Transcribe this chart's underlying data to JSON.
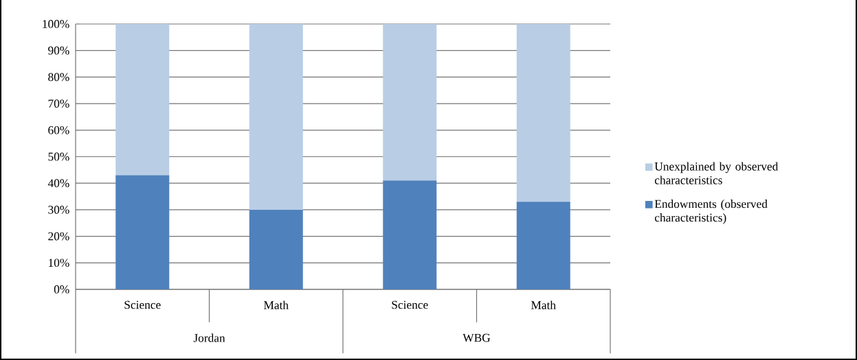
{
  "chart_data": {
    "type": "bar",
    "stacked": true,
    "categories": [
      "Science",
      "Math",
      "Science",
      "Math"
    ],
    "series": [
      {
        "name": "Endowments (observed characteristics)",
        "color": "#4f81bd",
        "values": [
          43,
          30,
          41,
          33
        ]
      },
      {
        "name": "Unexplained by observed characteristics",
        "color": "#b9cde5",
        "values": [
          57,
          70,
          59,
          67
        ]
      }
    ],
    "annotations": [
      "Jordan",
      "WBG"
    ],
    "ylim": [
      0,
      100
    ],
    "yticks": [
      {
        "value": 0,
        "label": "0%"
      },
      {
        "value": 10,
        "label": "10%"
      },
      {
        "value": 20,
        "label": "20%"
      },
      {
        "value": 30,
        "label": "30%"
      },
      {
        "value": 40,
        "label": "40%"
      },
      {
        "value": 50,
        "label": "50%"
      },
      {
        "value": 60,
        "label": "60%"
      },
      {
        "value": 70,
        "label": "70%"
      },
      {
        "value": 80,
        "label": "80%"
      },
      {
        "value": 90,
        "label": "90%"
      },
      {
        "value": 100,
        "label": "100%"
      }
    ],
    "grid": "y",
    "legend": "right"
  }
}
